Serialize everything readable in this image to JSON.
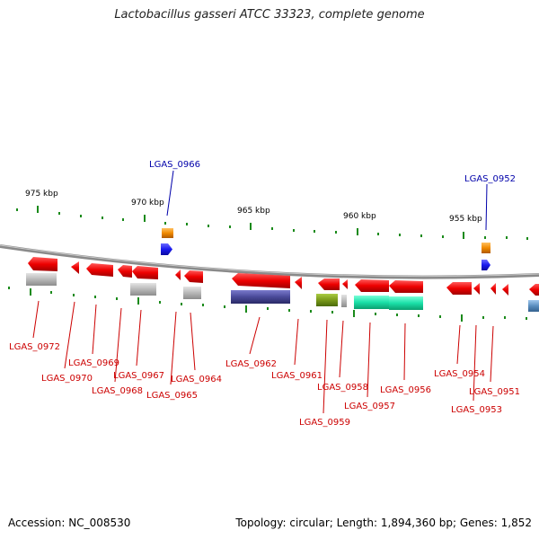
{
  "title": "Lactobacillus gasseri ATCC 33323, complete genome",
  "footer": {
    "accession": "Accession: NC_008530",
    "topology": "Topology: circular; Length: 1,894,360 bp; Genes: 1,852"
  },
  "scale": {
    "ticks": [
      {
        "label": "975 kbp"
      },
      {
        "label": "970 kbp"
      },
      {
        "label": "965 kbp"
      },
      {
        "label": "960 kbp"
      },
      {
        "label": "955 kbp"
      }
    ]
  },
  "colors": {
    "backbone": "#8a8a8a",
    "cds": "#ee0000",
    "label_red": "#cc0000",
    "label_blue": "#0000aa",
    "tick": "#1a8a1a",
    "gray_feature": "#b8b8b8",
    "navy_feature": "#4a4a99",
    "olive_feature": "#7a9a1a",
    "teal_feature": "#1ae0a8",
    "orange_feature": "#f08a00",
    "blue_feature": "#1a1aee"
  },
  "genes_top": [
    {
      "label": "LGAS_0966"
    },
    {
      "label": "LGAS_0952"
    }
  ],
  "genes_bottom": [
    {
      "label": "LGAS_0972"
    },
    {
      "label": "LGAS_0970"
    },
    {
      "label": "LGAS_0969"
    },
    {
      "label": "LGAS_0968"
    },
    {
      "label": "LGAS_0967"
    },
    {
      "label": "LGAS_0965"
    },
    {
      "label": "LGAS_0964"
    },
    {
      "label": "LGAS_0962"
    },
    {
      "label": "LGAS_0961"
    },
    {
      "label": "LGAS_0959"
    },
    {
      "label": "LGAS_0958"
    },
    {
      "label": "LGAS_0957"
    },
    {
      "label": "LGAS_0956"
    },
    {
      "label": "LGAS_0954"
    },
    {
      "label": "LGAS_0953"
    },
    {
      "label": "LGAS_0951"
    }
  ]
}
